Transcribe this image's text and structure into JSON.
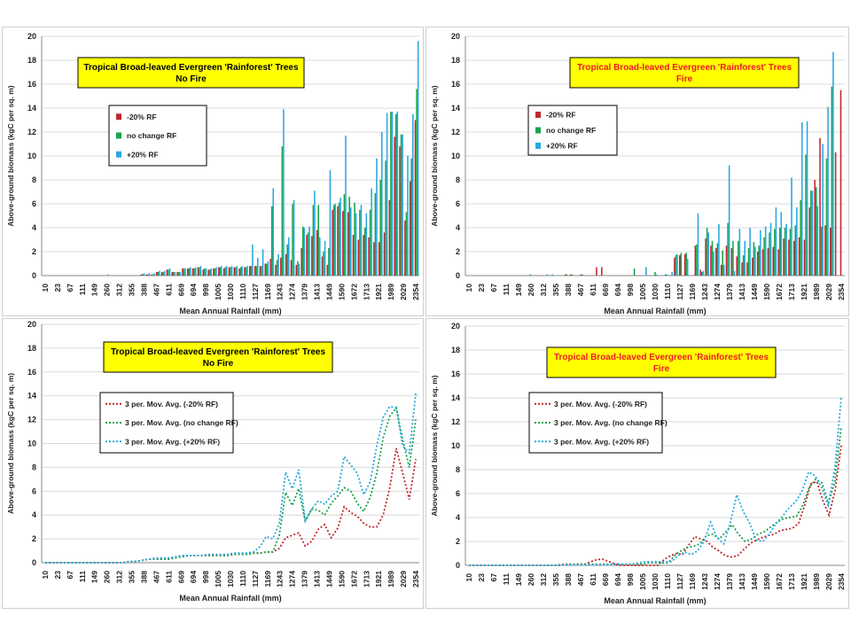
{
  "chart_data": [
    {
      "type": "bar",
      "title": "Tropical Broad-leaved Evergreen 'Rainforest' Trees",
      "subtitle": "No Fire",
      "title_color": "#000000",
      "xlabel": "Mean Annual Rainfall (mm)",
      "ylabel": "Above-ground biomass (kgC per sq. m)",
      "ylim": [
        0,
        20
      ],
      "yticks": [
        0,
        2,
        4,
        6,
        8,
        10,
        12,
        14,
        16,
        18,
        20
      ],
      "x_tick_labels": [
        "10",
        "23",
        "67",
        "111",
        "149",
        "260",
        "312",
        "355",
        "388",
        "467",
        "611",
        "669",
        "694",
        "998",
        "1005",
        "1030",
        "1110",
        "1127",
        "1169",
        "1243",
        "1274",
        "1379",
        "1413",
        "1449",
        "1590",
        "1672",
        "1713",
        "1921",
        "1989",
        "2029",
        "2354"
      ],
      "legend_position": "left",
      "series": [
        {
          "name": "-20% RF",
          "color": "#c0272d",
          "values": [
            0,
            0,
            0,
            0,
            0,
            0,
            0,
            0,
            0,
            0,
            0,
            0,
            0,
            0,
            0,
            0,
            0,
            0,
            0,
            0.1,
            0.1,
            0.1,
            0.3,
            0.3,
            0.5,
            0.3,
            0.3,
            0.6,
            0.6,
            0.6,
            0.7,
            0.5,
            0.5,
            0.6,
            0.7,
            0.6,
            0.7,
            0.7,
            0.6,
            0.7,
            0.8,
            0.8,
            0.8,
            1.0,
            1.4,
            0.9,
            1.5,
            1.8,
            1.3,
            0.9,
            2.3,
            3.4,
            3.3,
            3.8,
            1.6,
            0.9,
            5.5,
            5.8,
            5.4,
            5.3,
            3.4,
            3.0,
            3.4,
            3.2,
            2.8,
            2.8,
            3.6,
            6.3,
            11.6,
            10.8,
            4.6,
            7.9,
            13.0
          ]
        },
        {
          "name": "no change RF",
          "color": "#1aa34a",
          "values": [
            0,
            0,
            0,
            0,
            0,
            0,
            0,
            0,
            0,
            0,
            0,
            0,
            0,
            0,
            0,
            0,
            0,
            0,
            0,
            0.1,
            0.1,
            0.1,
            0.3,
            0.3,
            0.5,
            0.3,
            0.3,
            0.6,
            0.6,
            0.6,
            0.7,
            0.6,
            0.5,
            0.6,
            0.7,
            0.7,
            0.7,
            0.7,
            0.7,
            0.7,
            0.8,
            0.8,
            0.8,
            1.0,
            5.8,
            1.3,
            10.8,
            2.6,
            6.0,
            1.2,
            4.1,
            3.6,
            5.9,
            5.9,
            2.0,
            2.3,
            5.9,
            6.1,
            6.8,
            6.6,
            6.1,
            5.5,
            4.0,
            5.5,
            6.9,
            8.0,
            9.6,
            13.7,
            13.5,
            11.8,
            5.3,
            9.8,
            15.6
          ]
        },
        {
          "name": "+20% RF",
          "color": "#29a8e0",
          "values": [
            0,
            0,
            0,
            0,
            0,
            0,
            0,
            0,
            0,
            0,
            0,
            0,
            0.1,
            0,
            0,
            0,
            0,
            0,
            0,
            0.2,
            0.2,
            0.2,
            0.4,
            0.4,
            0.6,
            0.3,
            0.3,
            0.6,
            0.7,
            0.7,
            0.8,
            0.6,
            0.6,
            0.7,
            0.8,
            0.8,
            0.8,
            0.8,
            0.8,
            0.8,
            2.6,
            1.5,
            2.2,
            1.2,
            7.3,
            1.8,
            13.9,
            3.2,
            6.3,
            1.0,
            4.0,
            4.1,
            7.1,
            3.2,
            2.9,
            8.8,
            6.0,
            6.5,
            11.7,
            5.7,
            5.2,
            5.9,
            5.2,
            7.3,
            9.8,
            12.0,
            13.6,
            13.7,
            13.7,
            11.8,
            10.0,
            13.5,
            19.6
          ]
        }
      ]
    },
    {
      "type": "bar",
      "title": "Tropical Broad-leaved Evergreen 'Rainforest' Trees",
      "subtitle": "Fire",
      "title_color": "#ee1c24",
      "xlabel": "Mean Annual Rainfall (mm)",
      "ylabel": "Above-ground biomass (kgC per sq. m)",
      "ylim": [
        0,
        20
      ],
      "yticks": [
        0,
        2,
        4,
        6,
        8,
        10,
        12,
        14,
        16,
        18,
        20
      ],
      "x_tick_labels": [
        "10",
        "23",
        "67",
        "111",
        "149",
        "260",
        "312",
        "355",
        "388",
        "467",
        "611",
        "669",
        "694",
        "998",
        "1005",
        "1030",
        "1110",
        "1127",
        "1169",
        "1243",
        "1274",
        "1379",
        "1413",
        "1449",
        "1590",
        "1672",
        "1713",
        "1921",
        "1989",
        "2029",
        "2354"
      ],
      "legend_position": "left",
      "series": [
        {
          "name": "-20% RF",
          "color": "#c0272d",
          "values": [
            0,
            0,
            0,
            0,
            0,
            0,
            0,
            0,
            0,
            0,
            0,
            0,
            0,
            0,
            0,
            0,
            0,
            0,
            0,
            0.1,
            0.1,
            0,
            0.1,
            0,
            0,
            0.7,
            0.7,
            0,
            0,
            0,
            0,
            0,
            0,
            0,
            0,
            0,
            0,
            0,
            0,
            0,
            1.5,
            1.7,
            1.8,
            0,
            2.5,
            0.5,
            3.1,
            2.5,
            2.3,
            0.9,
            2.5,
            2.3,
            1.6,
            1.1,
            1.1,
            1.5,
            2.0,
            2.2,
            2.3,
            2.4,
            2.2,
            3.1,
            3.0,
            2.9,
            3.2,
            3.0,
            5.7,
            8.0,
            11.5,
            4.2,
            4.0,
            10.3,
            15.5
          ]
        },
        {
          "name": "no change RF",
          "color": "#1aa34a",
          "values": [
            0,
            0,
            0,
            0,
            0,
            0,
            0,
            0,
            0,
            0,
            0,
            0,
            0.1,
            0,
            0,
            0,
            0,
            0,
            0,
            0.1,
            0.1,
            0,
            0.1,
            0,
            0,
            0,
            0,
            0,
            0,
            0,
            0,
            0,
            0.6,
            0,
            0,
            0,
            0.3,
            0,
            0.1,
            0,
            1.7,
            1.9,
            1.9,
            0,
            2.6,
            0.3,
            4.0,
            2.9,
            2.7,
            2.1,
            4.4,
            2.9,
            2.9,
            1.7,
            2.3,
            2.8,
            2.5,
            3.2,
            3.6,
            3.9,
            4.0,
            4.0,
            3.9,
            4.2,
            6.3,
            10.1,
            7.1,
            7.4,
            4.1,
            9.8,
            15.8
          ]
        },
        {
          "name": "+20% RF",
          "color": "#29a8e0",
          "values": [
            0,
            0,
            0,
            0,
            0,
            0,
            0,
            0,
            0,
            0,
            0,
            0,
            0,
            0,
            0,
            0.1,
            0.1,
            0,
            0,
            0,
            0,
            0,
            0,
            0,
            0,
            0,
            0,
            0,
            0,
            0,
            0,
            0,
            0,
            0,
            0.7,
            0,
            0.1,
            0,
            0.1,
            0.3,
            1.8,
            0,
            1.4,
            0,
            5.2,
            0.4,
            3.6,
            2.0,
            4.3,
            0.9,
            9.2,
            0.4,
            3.9,
            2.9,
            4.0,
            2.4,
            3.8,
            4.1,
            4.4,
            5.7,
            5.3,
            4.3,
            8.2,
            5.7,
            12.8,
            12.9,
            7.1,
            5.8,
            11.0,
            14.1,
            18.7
          ]
        }
      ]
    },
    {
      "type": "line",
      "title": "Tropical Broad-leaved Evergreen 'Rainforest' Trees",
      "subtitle": "No Fire",
      "title_color": "#000000",
      "xlabel": "Mean Annual Rainfall (mm)",
      "ylabel": "Above-ground biomass (kgC per sq. m)",
      "ylim": [
        0,
        20
      ],
      "yticks": [
        0,
        2,
        4,
        6,
        8,
        10,
        12,
        14,
        16,
        18,
        20
      ],
      "x_tick_labels": [
        "10",
        "23",
        "67",
        "111",
        "149",
        "260",
        "312",
        "355",
        "388",
        "467",
        "611",
        "669",
        "694",
        "998",
        "1005",
        "1030",
        "1110",
        "1127",
        "1169",
        "1243",
        "1274",
        "1379",
        "1413",
        "1449",
        "1590",
        "1672",
        "1713",
        "1921",
        "1989",
        "2029",
        "2354"
      ],
      "legend_position": "left",
      "series": [
        {
          "name": "3 per. Mov. Avg. (-20% RF)",
          "color": "#c0272d",
          "values": [
            0,
            0,
            0,
            0,
            0,
            0,
            0,
            0,
            0,
            0,
            0,
            0,
            0,
            0.1,
            0.1,
            0.2,
            0.3,
            0.3,
            0.3,
            0.3,
            0.4,
            0.5,
            0.6,
            0.6,
            0.6,
            0.6,
            0.6,
            0.6,
            0.6,
            0.7,
            0.7,
            0.7,
            0.8,
            0.8,
            0.9,
            0.9,
            1.2,
            2.1,
            2.3,
            2.5,
            1.4,
            1.8,
            2.8,
            3.2,
            2.1,
            2.9,
            4.7,
            4.2,
            3.9,
            3.3,
            3.0,
            3.0,
            4.0,
            6.3,
            9.6,
            7.5,
            5.3,
            8.7
          ]
        },
        {
          "name": "3 per. Mov. Avg. (no change RF)",
          "color": "#1aa34a",
          "values": [
            0,
            0,
            0,
            0,
            0,
            0,
            0,
            0,
            0,
            0,
            0,
            0,
            0,
            0.1,
            0.1,
            0.2,
            0.3,
            0.3,
            0.3,
            0.3,
            0.4,
            0.5,
            0.6,
            0.6,
            0.6,
            0.6,
            0.6,
            0.6,
            0.6,
            0.7,
            0.7,
            0.7,
            0.8,
            0.8,
            0.9,
            0.9,
            2.3,
            5.9,
            4.8,
            6.2,
            3.5,
            4.5,
            4.4,
            4.0,
            5.0,
            5.6,
            6.3,
            6.0,
            5.0,
            4.3,
            5.5,
            7.5,
            10.5,
            12.3,
            13.0,
            10.3,
            8.0,
            12.0
          ]
        },
        {
          "name": "3 per. Mov. Avg. (+20% RF)",
          "color": "#29a8e0",
          "values": [
            0,
            0,
            0,
            0,
            0,
            0,
            0,
            0,
            0,
            0,
            0,
            0,
            0,
            0.1,
            0.1,
            0.2,
            0.3,
            0.4,
            0.4,
            0.4,
            0.5,
            0.6,
            0.6,
            0.6,
            0.6,
            0.7,
            0.7,
            0.7,
            0.7,
            0.8,
            0.8,
            0.8,
            0.9,
            1.3,
            2.2,
            2.0,
            3.3,
            7.6,
            6.2,
            7.8,
            3.5,
            4.5,
            5.2,
            4.9,
            5.6,
            6.0,
            8.9,
            8.2,
            7.5,
            5.7,
            6.8,
            9.8,
            12.2,
            13.1,
            13.0,
            9.8,
            9.2,
            14.2
          ]
        }
      ]
    },
    {
      "type": "line",
      "title": "Tropical Broad-leaved Evergreen 'Rainforest' Trees",
      "subtitle": "Fire",
      "title_color": "#ee1c24",
      "xlabel": "Mean Annual Rainfall (mm)",
      "ylabel": "Above-ground biomass (kgC per sq. m)",
      "ylim": [
        0,
        20
      ],
      "yticks": [
        0,
        2,
        4,
        6,
        8,
        10,
        12,
        14,
        16,
        18,
        20
      ],
      "x_tick_labels": [
        "10",
        "23",
        "67",
        "111",
        "149",
        "260",
        "312",
        "355",
        "388",
        "467",
        "611",
        "669",
        "694",
        "998",
        "1005",
        "1030",
        "1110",
        "1127",
        "1169",
        "1243",
        "1274",
        "1379",
        "1413",
        "1449",
        "1590",
        "1672",
        "1713",
        "1921",
        "1989",
        "2029",
        "2354"
      ],
      "legend_position": "left",
      "series": [
        {
          "name": "3 per. Mov. Avg. (-20% RF)",
          "color": "#c0272d",
          "values": [
            0,
            0,
            0,
            0,
            0,
            0,
            0,
            0,
            0,
            0,
            0,
            0,
            0,
            0,
            0,
            0.05,
            0.1,
            0.1,
            0.1,
            0.1,
            0.3,
            0.5,
            0.5,
            0.3,
            0.1,
            0,
            0,
            0,
            0,
            0,
            0,
            0,
            0.5,
            0.8,
            1.0,
            0.9,
            1.7,
            2.4,
            2.2,
            2.0,
            1.5,
            1.2,
            0.8,
            0.7,
            0.8,
            1.3,
            1.8,
            2.1,
            2.3,
            2.5,
            2.6,
            2.9,
            3.0,
            3.1,
            3.5,
            5.0,
            6.8,
            7.0,
            5.4,
            4.2,
            6.3,
            10.0
          ]
        },
        {
          "name": "3 per. Mov. Avg. (no change RF)",
          "color": "#1aa34a",
          "values": [
            0,
            0,
            0,
            0,
            0,
            0,
            0,
            0,
            0,
            0,
            0,
            0,
            0,
            0,
            0,
            0.05,
            0.1,
            0.1,
            0.1,
            0.1,
            0.1,
            0.1,
            0.1,
            0.1,
            0.1,
            0.1,
            0.1,
            0.1,
            0.2,
            0.2,
            0.2,
            0.2,
            0.8,
            1.2,
            1.5,
            1.6,
            1.8,
            2.5,
            2.6,
            2.2,
            2.8,
            3.4,
            2.6,
            2.0,
            2.2,
            2.6,
            2.8,
            3.2,
            3.6,
            3.9,
            4.0,
            4.1,
            5.0,
            6.5,
            7.2,
            6.9,
            5.2,
            7.0,
            11.6
          ]
        },
        {
          "name": "3 per. Mov. Avg. (+20% RF)",
          "color": "#29a8e0",
          "values": [
            0,
            0,
            0,
            0,
            0,
            0,
            0,
            0,
            0,
            0,
            0,
            0,
            0,
            0,
            0,
            0.05,
            0.05,
            0.05,
            0.05,
            0.05,
            0.05,
            0.05,
            0.1,
            0.1,
            0.1,
            0.1,
            0.2,
            0.3,
            0.3,
            0.3,
            0.3,
            0.3,
            0.8,
            1.1,
            0.9,
            1.2,
            2.0,
            3.6,
            2.3,
            1.8,
            3.5,
            5.9,
            4.5,
            3.5,
            2.1,
            2.0,
            2.6,
            3.5,
            4.1,
            4.8,
            5.3,
            6.2,
            7.8,
            7.5,
            6.5,
            5.0,
            8.0,
            14.0
          ]
        }
      ]
    }
  ]
}
